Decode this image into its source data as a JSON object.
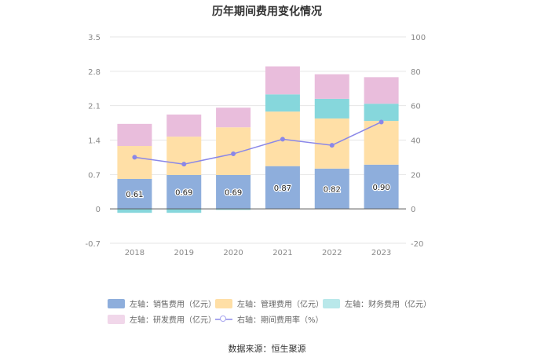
{
  "source": "数据来源：恒生聚源",
  "chart_data": {
    "type": "bar",
    "title": "历年期间费用变化情况",
    "categories": [
      "2018",
      "2019",
      "2020",
      "2021",
      "2022",
      "2023"
    ],
    "left_axis": {
      "ylim": [
        -0.7,
        3.5
      ],
      "ticks": [
        "-0.7",
        "0",
        "0.7",
        "1.4",
        "2.1",
        "2.8",
        "3.5"
      ],
      "tick_values": [
        -0.7,
        0,
        0.7,
        1.4,
        2.1,
        2.8,
        3.5
      ]
    },
    "right_axis": {
      "ylim": [
        -20,
        100
      ],
      "ticks": [
        "-20",
        "0",
        "20",
        "40",
        "60",
        "80",
        "100"
      ],
      "tick_values": [
        -20,
        0,
        20,
        40,
        60,
        80,
        100
      ]
    },
    "series": [
      {
        "name": "左轴：销售费用（亿元）",
        "type": "bar",
        "axis": "left",
        "color": "#8eaedc",
        "values": [
          0.61,
          0.69,
          0.69,
          0.87,
          0.82,
          0.9
        ],
        "labels": [
          "0.61",
          "0.69",
          "0.69",
          "0.87",
          "0.82",
          "0.90"
        ]
      },
      {
        "name": "左轴：管理费用（亿元）",
        "type": "bar",
        "axis": "left",
        "color": "#ffdfa6",
        "values": [
          0.67,
          0.78,
          0.97,
          1.11,
          1.02,
          0.89
        ]
      },
      {
        "name": "左轴：财务费用（亿元）",
        "type": "bar",
        "axis": "left",
        "color": "#86d7dc",
        "values": [
          -0.08,
          -0.08,
          -0.02,
          0.35,
          0.4,
          0.35
        ]
      },
      {
        "name": "左轴：研发费用（亿元）",
        "type": "bar",
        "axis": "left",
        "color": "#e9bddc",
        "values": [
          0.45,
          0.45,
          0.4,
          0.57,
          0.5,
          0.54
        ]
      },
      {
        "name": "右轴：期间费用率（%）",
        "type": "line",
        "axis": "right",
        "color": "#8a87e8",
        "values": [
          30,
          26,
          32,
          40.5,
          37,
          50.5
        ]
      }
    ],
    "legend_position": "bottom",
    "grid": true
  }
}
